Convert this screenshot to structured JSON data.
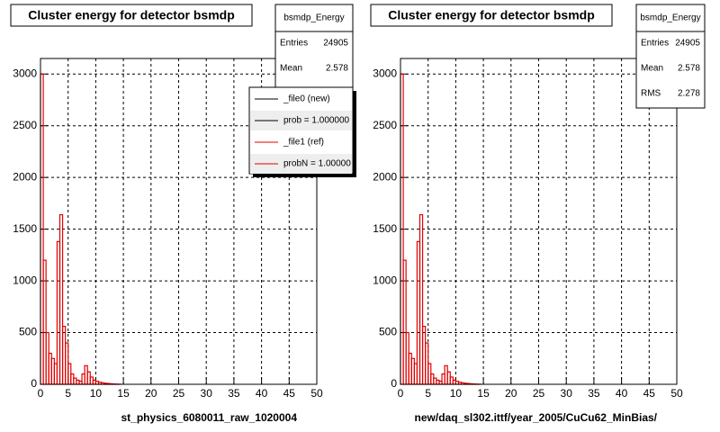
{
  "chart_data": [
    {
      "type": "histogram",
      "title": "Cluster energy for detector bsmdp",
      "xlabel": "st_physics_6080011_raw_1020004",
      "bins": [
        0,
        0.5,
        1,
        1.5,
        2,
        2.5,
        3,
        3.5,
        4,
        4.5,
        5,
        5.5,
        6,
        6.5,
        7,
        7.5,
        8,
        8.5,
        9,
        9.5,
        10,
        10.5,
        11,
        11.5,
        12,
        12.5,
        13,
        13.5,
        14,
        14.5,
        15
      ],
      "series": [
        {
          "name": "_file1 (ref)",
          "color": "#e00000",
          "values": [
            3000,
            1200,
            500,
            300,
            250,
            200,
            1380,
            1640,
            560,
            400,
            200,
            100,
            60,
            40,
            30,
            100,
            180,
            120,
            70,
            40,
            30,
            20,
            15,
            10,
            8,
            5,
            3,
            2,
            1,
            0
          ]
        }
      ],
      "xlim": [
        0,
        50
      ],
      "xticks": [
        0,
        5,
        10,
        15,
        20,
        25,
        30,
        35,
        40,
        45,
        50
      ],
      "ylim": [
        0,
        3150
      ],
      "yticks": [
        0,
        500,
        1000,
        1500,
        2000,
        2500,
        3000
      ],
      "grid": true,
      "stats": {
        "title": "bsmdp_Energy",
        "rows": [
          [
            "Entries",
            24905
          ],
          [
            "Mean",
            2.578
          ]
        ]
      },
      "legend": [
        {
          "label": "_file0 (new)",
          "color": "#000000"
        },
        {
          "label": "prob = 1.000000",
          "color": "#000000"
        },
        {
          "label": "_file1 (ref)",
          "color": "#e00000"
        },
        {
          "label": "probN = 1.00000",
          "color": "#e00000"
        }
      ]
    },
    {
      "type": "histogram",
      "title": "Cluster energy for detector bsmdp",
      "xlabel": "new/daq_sl302.ittf/year_2005/CuCu62_MinBias/",
      "bins": [
        0,
        0.5,
        1,
        1.5,
        2,
        2.5,
        3,
        3.5,
        4,
        4.5,
        5,
        5.5,
        6,
        6.5,
        7,
        7.5,
        8,
        8.5,
        9,
        9.5,
        10,
        10.5,
        11,
        11.5,
        12,
        12.5,
        13,
        13.5,
        14,
        14.5,
        15
      ],
      "series": [
        {
          "name": "bsmdp_Energy",
          "color": "#e00000",
          "values": [
            3000,
            1200,
            500,
            300,
            250,
            200,
            1380,
            1640,
            560,
            400,
            200,
            100,
            60,
            40,
            30,
            100,
            180,
            120,
            70,
            40,
            30,
            20,
            15,
            10,
            8,
            5,
            3,
            2,
            1,
            0
          ]
        }
      ],
      "xlim": [
        0,
        50
      ],
      "xticks": [
        0,
        5,
        10,
        15,
        20,
        25,
        30,
        35,
        40,
        45,
        50
      ],
      "ylim": [
        0,
        3150
      ],
      "yticks": [
        0,
        500,
        1000,
        1500,
        2000,
        2500,
        3000
      ],
      "grid": true,
      "stats": {
        "title": "bsmdp_Energy",
        "rows": [
          [
            "Entries",
            24905
          ],
          [
            "Mean",
            2.578
          ],
          [
            "RMS",
            2.278
          ]
        ]
      }
    }
  ]
}
